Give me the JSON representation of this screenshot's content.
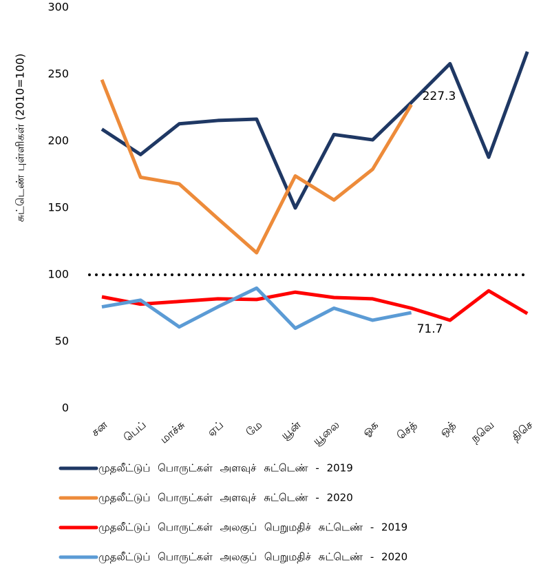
{
  "chart_data": {
    "type": "line",
    "ylabel": "சுட்டெண் புள்ளிகள் (2010=100)",
    "categories": [
      "சன",
      "பெப்",
      "மாச்சு",
      "ஏப்",
      "மே",
      "யூன்",
      "யூலை",
      "ஓக",
      "செத்",
      "ஒத்",
      "நவெ",
      "திசெ"
    ],
    "series": [
      {
        "name": "முதலீட்டுப் பொருட்கள் அளவுச் சுட்டெண் - 2019",
        "color": "#1f3864",
        "values": [
          209,
          190,
          213,
          215.5,
          216.5,
          150,
          205,
          201,
          229,
          258,
          188,
          267
        ]
      },
      {
        "name": "முதலீட்டுப் பொருட்கள் அளவுச் சுட்டெண் - 2020",
        "color": "#ed8b3a",
        "values": [
          246,
          173,
          168,
          142,
          116.5,
          174,
          156,
          179,
          227.3,
          null,
          null,
          null
        ]
      },
      {
        "name": "முதலீட்டுப் பொருட்கள் அலகுப் பெறுமதிச் சுட்டெண் - 2019",
        "color": "#ff0000",
        "values": [
          83.5,
          78,
          80,
          82,
          81.5,
          87,
          83,
          82,
          75,
          66,
          88,
          71
        ]
      },
      {
        "name": "முதலீட்டுப் பொருட்கள் அலகுப் பெறுமதிச் சுட்டெண் - 2020",
        "color": "#5b9bd5",
        "values": [
          76,
          81,
          61,
          76,
          90,
          60,
          75,
          66,
          71.7,
          null,
          null,
          null
        ]
      }
    ],
    "reference_line": 100,
    "ylim": [
      0,
      300
    ],
    "yticks": [
      0,
      50,
      100,
      150,
      200,
      250,
      300
    ],
    "grid": false
  }
}
